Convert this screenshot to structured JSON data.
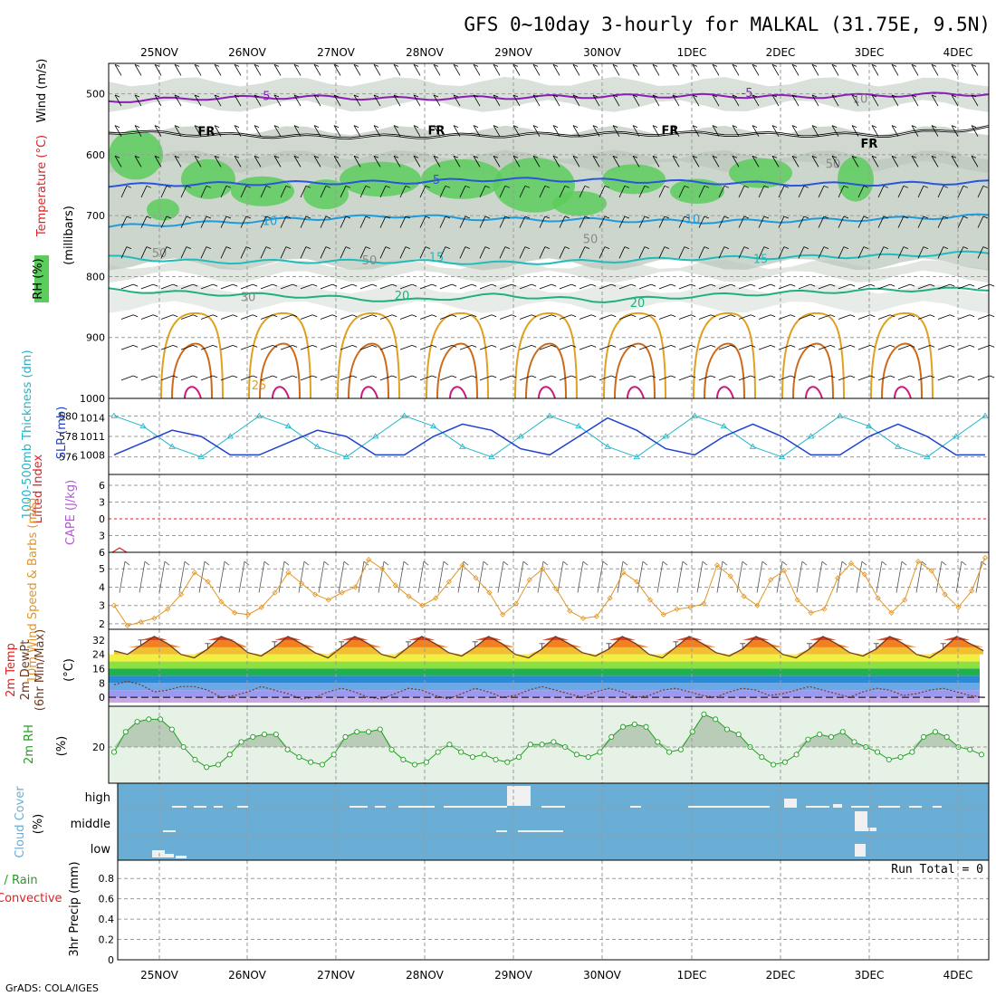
{
  "title": "GFS 0~10day 3-hourly for MALKAL (31.75E, 9.5N)",
  "footer": "GrADS: COLA/IGES",
  "dates": [
    "25NOV",
    "26NOV",
    "27NOV",
    "28NOV",
    "29NOV",
    "30NOV",
    "1DEC",
    "2DEC",
    "3DEC",
    "4DEC"
  ],
  "colors": {
    "rh_green": "#5ccc5c",
    "rh_gray": "#bcc8bc",
    "temp_purple": "#8a1fb5",
    "temp_black": "#000000",
    "temp_blue": "#2a55dd",
    "temp_lightblue": "#1e9bdb",
    "temp_teal": "#20bcbc",
    "temp_green": "#20b080",
    "temp_orange": "#e0a020",
    "temp_darkorange": "#cc6a1a",
    "temp_magenta": "#cc1a7a",
    "thickness": "#20b6c8",
    "slp": "#2040d0",
    "lifted_index": "#e02020",
    "cape": "#b05ad0",
    "wind_speed": "#e0962a",
    "temp2m_dark": "#6e3a20",
    "rh2m_green": "#20a020",
    "cloud_blue": "#6aaed6",
    "precip_green": "#20a020",
    "precip_red": "#e02020"
  },
  "chart_data": [
    {
      "type": "line",
      "panel": "upper-air",
      "ylabel_parts": [
        "RH (%)",
        "Temperature (°C)",
        "Wind (m/s)",
        "(millibars)"
      ],
      "ylim": [
        1000,
        450
      ],
      "yticks": [
        500,
        600,
        700,
        800,
        900,
        1000
      ],
      "contour_labels": [
        "-5",
        "FR",
        "5",
        "10",
        "15",
        "20",
        "25",
        "50",
        "50",
        "30",
        "50",
        "50",
        "10"
      ],
      "series": [
        {
          "name": "-5",
          "level": [
            512,
            507,
            505,
            508,
            506,
            504,
            503,
            505,
            502,
            500
          ]
        },
        {
          "name": "FR",
          "level": [
            562,
            567,
            570,
            570,
            568,
            566,
            565,
            567,
            567,
            555
          ]
        },
        {
          "name": "5",
          "level": [
            650,
            648,
            646,
            645,
            640,
            642,
            645,
            648,
            648,
            645
          ]
        },
        {
          "name": "10",
          "level": [
            718,
            712,
            705,
            700,
            706,
            707,
            710,
            708,
            705,
            700
          ]
        },
        {
          "name": "15",
          "level": [
            768,
            776,
            775,
            775,
            778,
            775,
            770,
            768,
            766,
            760
          ]
        },
        {
          "name": "20",
          "level": [
            822,
            828,
            832,
            840,
            830,
            840,
            832,
            826,
            822,
            820
          ]
        }
      ]
    },
    {
      "type": "line",
      "panel": "thickness-slp",
      "ylabel_left": "1000-500mb Thickness (dm)",
      "ylabel_right": "SLP (mb)",
      "yticks_thickness": [
        576,
        578,
        580
      ],
      "yticks_slp": [
        1008,
        1011,
        1014
      ],
      "series": [
        {
          "name": "Thickness",
          "values": [
            580,
            579,
            577,
            576,
            578,
            580,
            579,
            577,
            576,
            578,
            580,
            579,
            577,
            576,
            578,
            580,
            579,
            577,
            576,
            578,
            580,
            579,
            577,
            576,
            578,
            580,
            579,
            577,
            576,
            578,
            580
          ]
        },
        {
          "name": "SLP",
          "values": [
            1008,
            1010,
            1012,
            1011,
            1008,
            1008,
            1010,
            1012,
            1011,
            1008,
            1008,
            1011,
            1013,
            1012,
            1009,
            1008,
            1011,
            1014,
            1012,
            1009,
            1008,
            1011,
            1013,
            1011,
            1008,
            1008,
            1011,
            1013,
            1011,
            1008,
            1008
          ]
        }
      ]
    },
    {
      "type": "line",
      "panel": "stability",
      "ylabel_left": "Lifted Index",
      "ylabel_right": "CAPE (J/kg)",
      "yticks": [
        "-6",
        "-3",
        "0",
        "3",
        "6"
      ],
      "series": [
        {
          "name": "Lifted Index",
          "values": [
            6,
            5.2,
            6
          ]
        }
      ]
    },
    {
      "type": "line",
      "panel": "wind10m",
      "ylabel": "10m Wind Speed & Barbs (m/s)",
      "yticks": [
        2,
        3,
        4,
        5
      ],
      "ylim": [
        1.7,
        5.9
      ],
      "series": [
        {
          "name": "10m Wind Speed",
          "values": [
            3.0,
            1.9,
            2.1,
            2.3,
            2.8,
            3.6,
            4.8,
            4.3,
            3.2,
            2.6,
            2.5,
            2.9,
            3.7,
            4.8,
            4.2,
            3.6,
            3.3,
            3.7,
            4.0,
            5.5,
            5.0,
            4.1,
            3.5,
            3.0,
            3.4,
            4.3,
            5.2,
            4.5,
            3.7,
            2.5,
            3.1,
            4.4,
            5.0,
            3.9,
            2.7,
            2.3,
            2.4,
            3.4,
            4.8,
            4.3,
            3.3,
            2.5,
            2.8,
            2.9,
            3.1,
            5.2,
            4.6,
            3.5,
            3.0,
            4.4,
            4.9,
            3.3,
            2.6,
            2.8,
            4.5,
            5.3,
            4.7,
            3.4,
            2.6,
            3.3,
            5.4,
            4.9,
            3.6,
            2.9,
            3.8,
            5.6
          ]
        }
      ]
    },
    {
      "type": "line",
      "panel": "temp2m",
      "ylabel": "2m Temp 2m DewPt (6hr Min/Max) (°C)",
      "yticks": [
        0,
        8,
        16,
        24,
        32
      ],
      "series": [
        {
          "name": "2m Temp",
          "values": [
            26,
            24,
            29,
            34,
            30,
            24,
            22,
            27,
            34,
            31,
            25,
            23,
            28,
            34,
            30,
            25,
            22,
            28,
            34,
            30,
            24,
            22,
            28,
            34,
            30,
            25,
            23,
            28,
            34,
            30,
            24,
            22,
            27,
            34,
            30,
            25,
            23,
            27,
            34,
            30,
            24,
            22,
            28,
            34,
            30,
            25,
            23,
            27,
            34,
            30,
            24,
            22,
            27,
            34,
            30,
            25,
            23,
            27,
            34,
            30,
            24,
            22,
            27,
            34,
            30,
            26
          ]
        },
        {
          "name": "2m DewPt",
          "values": [
            7,
            9,
            7,
            3,
            4,
            6,
            6,
            4,
            0,
            1,
            3,
            6,
            4,
            2,
            -1,
            0,
            3,
            5,
            3,
            0,
            -1,
            2,
            5,
            4,
            1,
            -1,
            2,
            5,
            3,
            0,
            1,
            4,
            6,
            4,
            2,
            0,
            3,
            5,
            3,
            0,
            1,
            4,
            5,
            3,
            1,
            0,
            3,
            5,
            4,
            1,
            2,
            4,
            6,
            4,
            2,
            0,
            3,
            5,
            4,
            1,
            2,
            4,
            5,
            3,
            1,
            0
          ]
        }
      ]
    },
    {
      "type": "area",
      "panel": "rh2m",
      "ylabel": "2m RH (%)",
      "yticks": [
        20
      ],
      "series": [
        {
          "name": "2m RH",
          "values": [
            18,
            26,
            30,
            31,
            31,
            27,
            20,
            15,
            12,
            13,
            17,
            22,
            24,
            25,
            25,
            19,
            16,
            14,
            13,
            17,
            24,
            26,
            26,
            27,
            19,
            15,
            13,
            14,
            18,
            21,
            18,
            16,
            17,
            15,
            14,
            16,
            21,
            21,
            22,
            20,
            17,
            16,
            18,
            24,
            28,
            29,
            28,
            22,
            18,
            19,
            26,
            33,
            31,
            27,
            25,
            20,
            16,
            13,
            14,
            17,
            23,
            25,
            24,
            26,
            22,
            20,
            18,
            15,
            16,
            18,
            24,
            26,
            24,
            20,
            19,
            17
          ]
        }
      ]
    },
    {
      "type": "heatmap",
      "panel": "cloud",
      "ylabel": "Cloud Cover (%)",
      "rows": [
        "high",
        "middle",
        "low"
      ]
    },
    {
      "type": "bar",
      "panel": "precip",
      "ylabel_left": "Total / Rain",
      "ylabel_left2": "Convective",
      "ylabel_right": "3hr Precip (mm)",
      "yticks": [
        0,
        0.2,
        0.4,
        0.6,
        0.8
      ],
      "ylim": [
        0,
        0.98
      ],
      "run_total": "Run Total = 0",
      "values": []
    }
  ]
}
